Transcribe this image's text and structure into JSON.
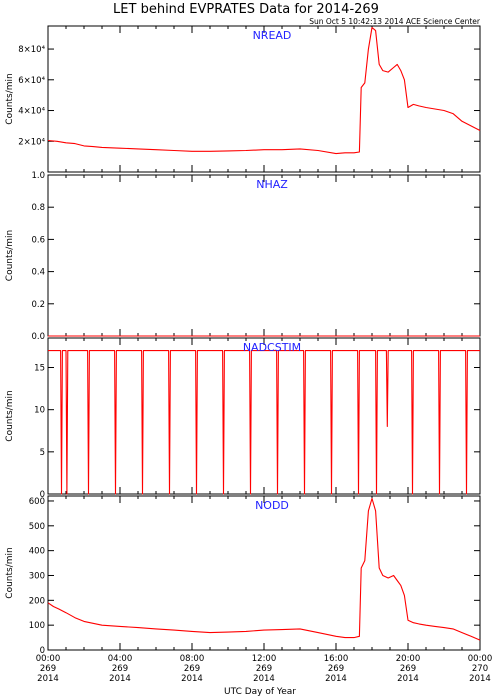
{
  "header": {
    "title": "LET behind EVPRATES Data for 2014-269",
    "timestamp": "Sun Oct  5 10:42:13 2014 ACE Science Center"
  },
  "footer": {
    "xlabel": "UTC Day of Year"
  },
  "colors": {
    "series": "#ff0000",
    "panel_label": "#2222ff",
    "axes": "#000000"
  },
  "chart_data": [
    {
      "type": "line",
      "panel_label": "NREAD",
      "ylabel": "Counts/min",
      "ylim": [
        0,
        95000
      ],
      "ytick_labels": [
        "2×10⁴",
        "4×10⁴",
        "6×10⁴",
        "8×10⁴"
      ],
      "ytick_values": [
        20000,
        40000,
        60000,
        80000
      ],
      "series": [
        {
          "x": [
            0,
            0.5,
            1,
            1.5,
            2,
            2.5,
            3,
            4,
            5,
            6,
            7,
            8,
            9,
            10,
            11,
            12,
            13,
            14,
            15,
            16,
            16.5,
            17,
            17.3,
            17.4,
            17.6,
            17.8,
            18,
            18.2,
            18.4,
            18.6,
            18.9,
            19.2,
            19.4,
            19.6,
            19.8,
            20,
            20.3,
            20.6,
            21,
            21.5,
            22,
            22.5,
            23,
            23.5,
            24
          ],
          "values": [
            20500,
            20000,
            19000,
            18500,
            17000,
            16500,
            16000,
            15500,
            15000,
            14500,
            14000,
            13500,
            13500,
            13700,
            14000,
            14500,
            14500,
            15000,
            14000,
            12000,
            12500,
            12500,
            13000,
            55000,
            58000,
            80000,
            94000,
            92000,
            70000,
            66000,
            65000,
            68000,
            70000,
            66000,
            60000,
            42000,
            44000,
            43000,
            42000,
            41000,
            40000,
            38000,
            33000,
            30000,
            27000
          ]
        }
      ]
    },
    {
      "type": "line",
      "panel_label": "NHAZ",
      "ylabel": "Counts/min",
      "ylim": [
        0,
        1
      ],
      "ytick_labels": [
        "0.0",
        "0.2",
        "0.4",
        "0.6",
        "0.8",
        "1.0"
      ],
      "ytick_values": [
        0,
        0.2,
        0.4,
        0.6,
        0.8,
        1.0
      ],
      "series": [
        {
          "x": [
            0,
            24
          ],
          "values": [
            0,
            0
          ]
        }
      ]
    },
    {
      "type": "line",
      "panel_label": "NADCSTIM",
      "ylabel": "Counts/min",
      "ylim": [
        0,
        18.5
      ],
      "ytick_labels": [
        "0",
        "5",
        "10",
        "15"
      ],
      "ytick_values": [
        0,
        5,
        10,
        15
      ],
      "series": [
        {
          "x": [
            0,
            0.7,
            0.75,
            0.8,
            1.0,
            1.05,
            1.1,
            2.2,
            2.25,
            2.3,
            3.7,
            3.75,
            3.8,
            5.2,
            5.25,
            5.3,
            6.7,
            6.75,
            6.8,
            8.2,
            8.25,
            8.3,
            9.7,
            9.75,
            9.8,
            11.2,
            11.25,
            11.3,
            12.7,
            12.75,
            12.8,
            14.2,
            14.25,
            14.3,
            15.7,
            15.75,
            15.8,
            17.2,
            17.25,
            17.3,
            18.2,
            18.25,
            18.3,
            18.8,
            18.85,
            18.9,
            20.2,
            20.25,
            20.3,
            21.7,
            21.75,
            21.8,
            23.2,
            23.25,
            23.3,
            24
          ],
          "values": [
            17,
            17,
            0,
            17,
            17,
            0,
            17,
            17,
            0,
            17,
            17,
            0,
            17,
            17,
            0,
            17,
            17,
            0,
            17,
            17,
            0,
            17,
            17,
            0,
            17,
            17,
            0,
            17,
            17,
            0,
            17,
            17,
            0,
            17,
            17,
            0,
            17,
            17,
            0,
            17,
            17,
            0,
            17,
            17,
            8,
            17,
            17,
            0,
            17,
            17,
            0,
            17,
            17,
            0,
            17,
            17
          ]
        }
      ]
    },
    {
      "type": "line",
      "panel_label": "NODD",
      "ylabel": "Counts/min",
      "ylim": [
        0,
        620
      ],
      "ytick_labels": [
        "0",
        "100",
        "200",
        "300",
        "400",
        "500",
        "600"
      ],
      "ytick_values": [
        0,
        100,
        200,
        300,
        400,
        500,
        600
      ],
      "series": [
        {
          "x": [
            0,
            0.3,
            0.6,
            1,
            1.5,
            2,
            3,
            4,
            5,
            6,
            7,
            8,
            9,
            10,
            11,
            12,
            13,
            14,
            15,
            16,
            16.5,
            17,
            17.3,
            17.4,
            17.6,
            17.8,
            18,
            18.2,
            18.4,
            18.6,
            18.9,
            19.2,
            19.4,
            19.6,
            19.8,
            20,
            20.3,
            20.6,
            21,
            21.5,
            22,
            22.5,
            23,
            23.5,
            24
          ],
          "values": [
            190,
            175,
            165,
            150,
            130,
            115,
            100,
            95,
            90,
            85,
            80,
            75,
            70,
            72,
            75,
            80,
            82,
            85,
            70,
            55,
            50,
            50,
            55,
            330,
            360,
            560,
            610,
            560,
            330,
            300,
            290,
            300,
            280,
            260,
            220,
            120,
            110,
            105,
            100,
            95,
            90,
            85,
            70,
            55,
            40
          ]
        }
      ]
    }
  ],
  "xaxis": {
    "range_hours": [
      0,
      24
    ],
    "ticks": [
      {
        "hour": 0,
        "time": "00:00",
        "doy": "269",
        "year": "2014"
      },
      {
        "hour": 4,
        "time": "04:00",
        "doy": "269",
        "year": "2014"
      },
      {
        "hour": 8,
        "time": "08:00",
        "doy": "269",
        "year": "2014"
      },
      {
        "hour": 12,
        "time": "12:00",
        "doy": "269",
        "year": "2014"
      },
      {
        "hour": 16,
        "time": "16:00",
        "doy": "269",
        "year": "2014"
      },
      {
        "hour": 20,
        "time": "20:00",
        "doy": "269",
        "year": "2014"
      },
      {
        "hour": 24,
        "time": "00:00",
        "doy": "270",
        "year": "2014"
      }
    ]
  }
}
